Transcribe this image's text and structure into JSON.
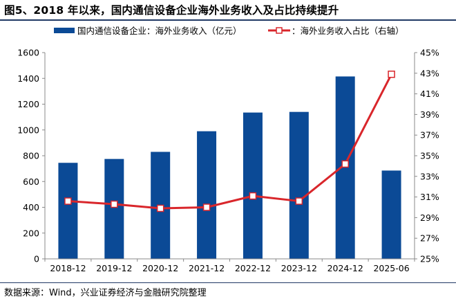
{
  "title": "图5、2018 年以来，国内通信设备企业海外业务收入及占比持续提升",
  "source": "数据来源：Wind，兴业证券经济与金融研究院整理",
  "colors": {
    "bar": "#0b4a96",
    "line": "#d9262b",
    "marker_fill": "#ffffff",
    "axis": "#888888",
    "rule": "#1f3864"
  },
  "chart_data": {
    "type": "bar+line",
    "categories": [
      "2018-12",
      "2019-12",
      "2020-12",
      "2021-12",
      "2022-12",
      "2023-12",
      "2024-12",
      "2025-06"
    ],
    "series": [
      {
        "name": "国内通信设备企业：海外业务收入（亿元）",
        "type": "bar",
        "axis": "left",
        "values": [
          745,
          775,
          830,
          990,
          1135,
          1140,
          1415,
          685
        ]
      },
      {
        "name": "：海外业务收入占比（右轴）",
        "type": "line",
        "axis": "right",
        "values": [
          30.6,
          30.3,
          29.9,
          30.0,
          31.1,
          30.6,
          34.2,
          42.9
        ]
      }
    ],
    "left_axis": {
      "ylim": [
        0,
        1600
      ],
      "ticks": [
        "0",
        "200",
        "400",
        "600",
        "800",
        "1000",
        "1200",
        "1400",
        "1600"
      ]
    },
    "right_axis": {
      "ylim": [
        25,
        45
      ],
      "ticks": [
        "25%",
        "27%",
        "29%",
        "31%",
        "33%",
        "35%",
        "37%",
        "39%",
        "41%",
        "43%",
        "45%"
      ]
    },
    "legend_position": "top",
    "grid": false
  }
}
